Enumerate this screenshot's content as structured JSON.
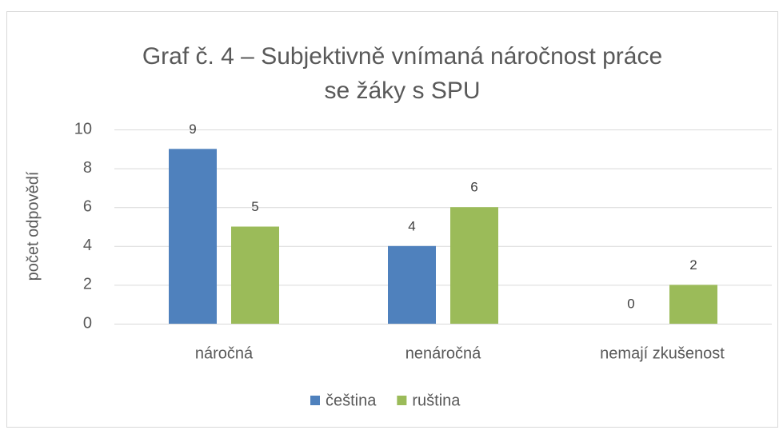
{
  "chart_data": {
    "type": "bar",
    "title": [
      "Graf č. 4 – Subjektivně vnímaná náročnost práce",
      "se žáky s SPU"
    ],
    "y_label": "počet odpovědí",
    "categories": [
      "náročná",
      "nenáročná",
      "nemají zkušenost"
    ],
    "series": [
      {
        "name": "čeština",
        "color": "#4f81bd",
        "values": [
          9,
          4,
          0
        ]
      },
      {
        "name": "ruština",
        "color": "#9bbb59",
        "values": [
          5,
          6,
          2
        ]
      }
    ],
    "ylim": [
      0,
      10
    ],
    "yticks": [
      0,
      2,
      4,
      6,
      8,
      10
    ],
    "grid": true,
    "legend": "bottom"
  }
}
